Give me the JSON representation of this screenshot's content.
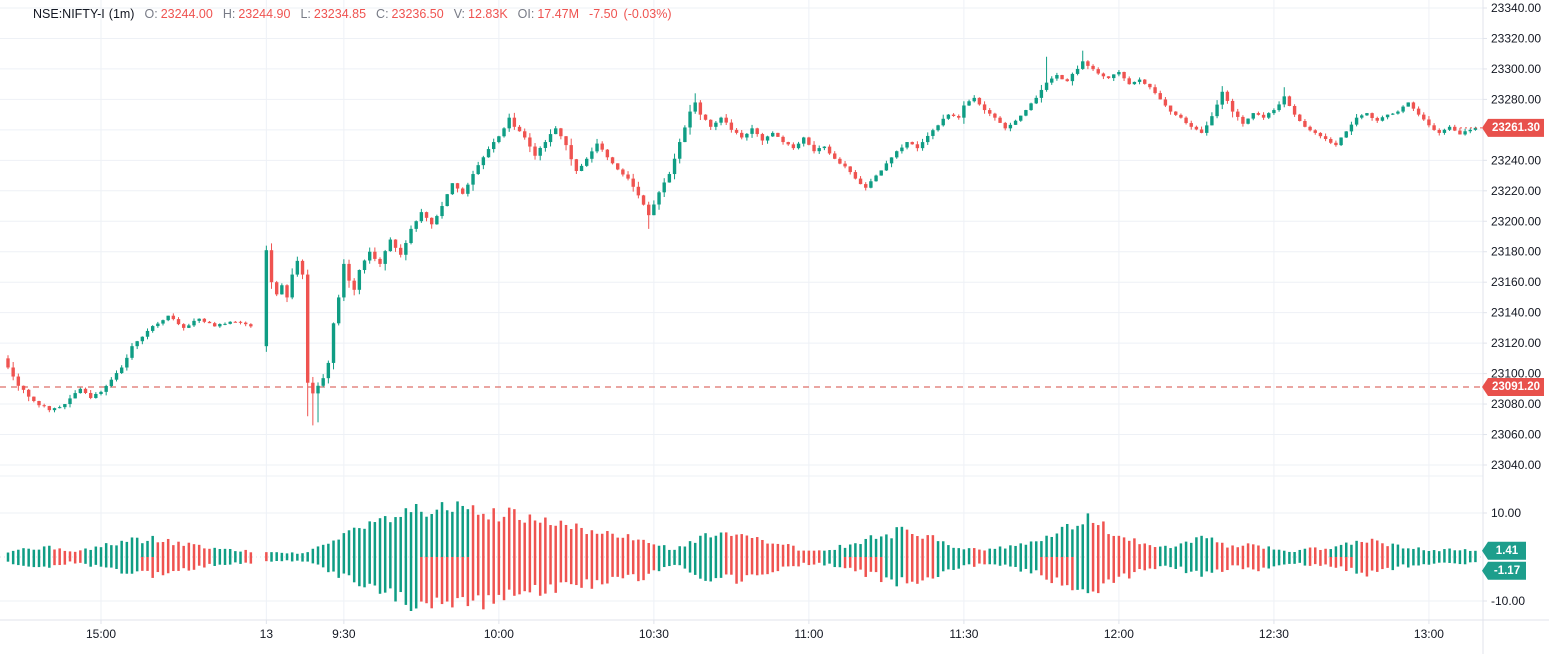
{
  "header": {
    "symbol": "NSE:NIFTY-I",
    "interval": "(1m)",
    "fields": [
      {
        "label": "O:",
        "value": "23244.00"
      },
      {
        "label": "H:",
        "value": "23244.90"
      },
      {
        "label": "L:",
        "value": "23234.85"
      },
      {
        "label": "C:",
        "value": "23236.50"
      },
      {
        "label": "V:",
        "value": "12.83K"
      },
      {
        "label": "OI:",
        "value": "17.47M"
      }
    ],
    "change": "-7.50",
    "change_pct": "(-0.03%)"
  },
  "colors": {
    "up": "#0f9d84",
    "down": "#ef5350",
    "badge_red": "#e8514c",
    "badge_teal": "#1d9e8c",
    "grid": "#eef1f6",
    "axis_border": "#e0e3eb",
    "axis_text": "#131722",
    "muted_text": "#787b86",
    "prev_close_line": "#d64b43",
    "zero_line": "#d8dbe0",
    "background": "#ffffff"
  },
  "chart_data": {
    "type": "candlestick",
    "symbol": "NSE:NIFTY-I",
    "interval": "1m",
    "legend_position": "top-left",
    "grid": true,
    "bars_total": 285,
    "gap_indices": [
      48,
      49
    ],
    "x_labels": [
      {
        "i": 18,
        "label": "15:00"
      },
      {
        "i": 50,
        "label": "13"
      },
      {
        "i": 65,
        "label": "9:30"
      },
      {
        "i": 95,
        "label": "10:00"
      },
      {
        "i": 125,
        "label": "10:30"
      },
      {
        "i": 155,
        "label": "11:00"
      },
      {
        "i": 185,
        "label": "11:30"
      },
      {
        "i": 215,
        "label": "12:00"
      },
      {
        "i": 245,
        "label": "12:30"
      },
      {
        "i": 275,
        "label": "13:00"
      }
    ],
    "price_panel": {
      "ylim": [
        23034,
        23345
      ],
      "ticks": [
        23340,
        23320,
        23300,
        23280,
        23260,
        23240,
        23220,
        23200,
        23180,
        23160,
        23140,
        23120,
        23100,
        23080,
        23060,
        23040
      ],
      "last_price": 23261.3,
      "last_price_label": "23261.30",
      "prev_close": 23091.2,
      "prev_close_label": "23091.20",
      "close_anchors": [
        [
          0,
          23104
        ],
        [
          2,
          23092
        ],
        [
          5,
          23082
        ],
        [
          8,
          23076
        ],
        [
          11,
          23080
        ],
        [
          14,
          23090
        ],
        [
          16,
          23084
        ],
        [
          18,
          23088
        ],
        [
          20,
          23096
        ],
        [
          22,
          23104
        ],
        [
          24,
          23118
        ],
        [
          27,
          23128
        ],
        [
          31,
          23138
        ],
        [
          34,
          23130
        ],
        [
          37,
          23136
        ],
        [
          40,
          23131
        ],
        [
          44,
          23134
        ],
        [
          47,
          23131
        ],
        [
          50,
          23181
        ],
        [
          51,
          23160
        ],
        [
          52,
          23152
        ],
        [
          53,
          23158
        ],
        [
          54,
          23150
        ],
        [
          55,
          23165
        ],
        [
          56,
          23174
        ],
        [
          57,
          23165
        ],
        [
          58,
          23094
        ],
        [
          59,
          23087
        ],
        [
          60,
          23092
        ],
        [
          61,
          23097
        ],
        [
          62,
          23107
        ],
        [
          63,
          23133
        ],
        [
          64,
          23150
        ],
        [
          65,
          23172
        ],
        [
          66,
          23161
        ],
        [
          67,
          23155
        ],
        [
          68,
          23168
        ],
        [
          70,
          23180
        ],
        [
          72,
          23172
        ],
        [
          74,
          23188
        ],
        [
          76,
          23178
        ],
        [
          78,
          23195
        ],
        [
          80,
          23206
        ],
        [
          82,
          23198
        ],
        [
          84,
          23210
        ],
        [
          86,
          23225
        ],
        [
          88,
          23218
        ],
        [
          90,
          23231
        ],
        [
          92,
          23242
        ],
        [
          94,
          23252
        ],
        [
          96,
          23261
        ],
        [
          97,
          23268
        ],
        [
          98,
          23262
        ],
        [
          100,
          23255
        ],
        [
          102,
          23243
        ],
        [
          104,
          23252
        ],
        [
          106,
          23261
        ],
        [
          108,
          23250
        ],
        [
          110,
          23233
        ],
        [
          112,
          23241
        ],
        [
          114,
          23251
        ],
        [
          116,
          23242
        ],
        [
          118,
          23234
        ],
        [
          120,
          23228
        ],
        [
          122,
          23217
        ],
        [
          124,
          23204
        ],
        [
          125,
          23211
        ],
        [
          126,
          23219
        ],
        [
          128,
          23231
        ],
        [
          130,
          23252
        ],
        [
          132,
          23272
        ],
        [
          133,
          23278
        ],
        [
          134,
          23270
        ],
        [
          136,
          23262
        ],
        [
          138,
          23268
        ],
        [
          140,
          23260
        ],
        [
          142,
          23255
        ],
        [
          144,
          23261
        ],
        [
          146,
          23253
        ],
        [
          148,
          23258
        ],
        [
          150,
          23252
        ],
        [
          152,
          23248
        ],
        [
          154,
          23255
        ],
        [
          156,
          23246
        ],
        [
          158,
          23249
        ],
        [
          160,
          23241
        ],
        [
          162,
          23236
        ],
        [
          164,
          23228
        ],
        [
          166,
          23222
        ],
        [
          168,
          23230
        ],
        [
          170,
          23238
        ],
        [
          172,
          23246
        ],
        [
          174,
          23252
        ],
        [
          176,
          23248
        ],
        [
          178,
          23256
        ],
        [
          180,
          23263
        ],
        [
          182,
          23270
        ],
        [
          184,
          23268
        ],
        [
          185,
          23276
        ],
        [
          187,
          23281
        ],
        [
          189,
          23273
        ],
        [
          191,
          23268
        ],
        [
          193,
          23261
        ],
        [
          195,
          23266
        ],
        [
          197,
          23273
        ],
        [
          199,
          23281
        ],
        [
          201,
          23291
        ],
        [
          203,
          23296
        ],
        [
          205,
          23292
        ],
        [
          207,
          23300
        ],
        [
          208,
          23305
        ],
        [
          209,
          23302
        ],
        [
          211,
          23297
        ],
        [
          213,
          23294
        ],
        [
          215,
          23298
        ],
        [
          217,
          23290
        ],
        [
          219,
          23293
        ],
        [
          221,
          23288
        ],
        [
          223,
          23280
        ],
        [
          225,
          23272
        ],
        [
          227,
          23268
        ],
        [
          229,
          23262
        ],
        [
          231,
          23258
        ],
        [
          233,
          23269
        ],
        [
          235,
          23285
        ],
        [
          237,
          23272
        ],
        [
          239,
          23264
        ],
        [
          241,
          23271
        ],
        [
          243,
          23268
        ],
        [
          245,
          23273
        ],
        [
          247,
          23282
        ],
        [
          249,
          23270
        ],
        [
          251,
          23262
        ],
        [
          253,
          23258
        ],
        [
          255,
          23254
        ],
        [
          257,
          23250
        ],
        [
          259,
          23259
        ],
        [
          261,
          23268
        ],
        [
          263,
          23271
        ],
        [
          265,
          23266
        ],
        [
          267,
          23270
        ],
        [
          269,
          23272
        ],
        [
          271,
          23278
        ],
        [
          273,
          23270
        ],
        [
          275,
          23263
        ],
        [
          277,
          23258
        ],
        [
          279,
          23262
        ],
        [
          281,
          23257
        ],
        [
          283,
          23260
        ],
        [
          284,
          23261.3
        ]
      ],
      "open_overrides": [
        {
          "i": 50,
          "open": 23118
        }
      ],
      "wick_overrides": [
        {
          "i": 0,
          "high": 23112
        },
        {
          "i": 50,
          "high": 23184
        },
        {
          "i": 58,
          "low": 23072
        },
        {
          "i": 59,
          "low": 23066
        },
        {
          "i": 60,
          "low": 23068
        },
        {
          "i": 124,
          "low": 23195
        },
        {
          "i": 133,
          "high": 23284
        },
        {
          "i": 201,
          "high": 23308
        },
        {
          "i": 208,
          "high": 23312
        },
        {
          "i": 247,
          "high": 23288
        }
      ]
    },
    "indicator_panel": {
      "ylim": [
        -13.9,
        18.4
      ],
      "ticks": [
        10,
        -10
      ],
      "tick_labels": [
        "10.00",
        "-10.00"
      ],
      "zero_line": true,
      "last_values": [
        1.41,
        -1.17
      ],
      "last_value_labels": [
        "1.41",
        "-1.17"
      ],
      "amp_anchors": [
        [
          0,
          1.3
        ],
        [
          4,
          1.8
        ],
        [
          8,
          2.2
        ],
        [
          12,
          1.2
        ],
        [
          15,
          1.7
        ],
        [
          18,
          2.4
        ],
        [
          21,
          3.2
        ],
        [
          24,
          3.8
        ],
        [
          28,
          4.0
        ],
        [
          32,
          3.3
        ],
        [
          36,
          2.5
        ],
        [
          40,
          1.8
        ],
        [
          44,
          1.5
        ],
        [
          48,
          1.2
        ],
        [
          52,
          1.0
        ],
        [
          56,
          0.9
        ],
        [
          58,
          1.3
        ],
        [
          60,
          2.0
        ],
        [
          62,
          3.0
        ],
        [
          64,
          4.2
        ],
        [
          66,
          5.0
        ],
        [
          68,
          6.0
        ],
        [
          70,
          7.0
        ],
        [
          72,
          8.0
        ],
        [
          75,
          9.3
        ],
        [
          78,
          10.0
        ],
        [
          81,
          10.4
        ],
        [
          84,
          10.5
        ],
        [
          87,
          10.3
        ],
        [
          90,
          10.1
        ],
        [
          93,
          9.7
        ],
        [
          96,
          9.3
        ],
        [
          99,
          8.8
        ],
        [
          102,
          8.0
        ],
        [
          105,
          7.4
        ],
        [
          108,
          6.8
        ],
        [
          111,
          6.3
        ],
        [
          114,
          5.8
        ],
        [
          117,
          5.4
        ],
        [
          120,
          5.0
        ],
        [
          123,
          4.5
        ],
        [
          125,
          3.6
        ],
        [
          127,
          2.2
        ],
        [
          129,
          1.6
        ],
        [
          131,
          2.4
        ],
        [
          133,
          3.8
        ],
        [
          135,
          4.8
        ],
        [
          137,
          4.5
        ],
        [
          139,
          4.8
        ],
        [
          141,
          5.0
        ],
        [
          143,
          4.5
        ],
        [
          145,
          4.0
        ],
        [
          147,
          3.4
        ],
        [
          149,
          3.0
        ],
        [
          151,
          2.4
        ],
        [
          153,
          1.8
        ],
        [
          155,
          1.5
        ],
        [
          157,
          1.5
        ],
        [
          159,
          1.8
        ],
        [
          161,
          2.3
        ],
        [
          163,
          2.8
        ],
        [
          165,
          3.5
        ],
        [
          167,
          4.1
        ],
        [
          169,
          4.7
        ],
        [
          171,
          5.3
        ],
        [
          173,
          5.8
        ],
        [
          175,
          6.0
        ],
        [
          177,
          5.2
        ],
        [
          179,
          4.4
        ],
        [
          181,
          3.2
        ],
        [
          183,
          2.4
        ],
        [
          185,
          2.1
        ],
        [
          187,
          2.0
        ],
        [
          189,
          1.7
        ],
        [
          191,
          1.9
        ],
        [
          193,
          2.2
        ],
        [
          195,
          2.5
        ],
        [
          197,
          2.9
        ],
        [
          199,
          3.6
        ],
        [
          201,
          4.6
        ],
        [
          203,
          5.8
        ],
        [
          205,
          6.8
        ],
        [
          207,
          7.7
        ],
        [
          209,
          8.2
        ],
        [
          211,
          7.4
        ],
        [
          213,
          6.3
        ],
        [
          215,
          5.3
        ],
        [
          217,
          4.3
        ],
        [
          219,
          3.3
        ],
        [
          221,
          2.7
        ],
        [
          223,
          2.3
        ],
        [
          225,
          2.1
        ],
        [
          227,
          2.8
        ],
        [
          229,
          3.5
        ],
        [
          231,
          4.0
        ],
        [
          233,
          3.6
        ],
        [
          235,
          2.9
        ],
        [
          237,
          2.3
        ],
        [
          239,
          2.5
        ],
        [
          241,
          2.9
        ],
        [
          243,
          2.4
        ],
        [
          245,
          1.9
        ],
        [
          247,
          1.5
        ],
        [
          249,
          1.4
        ],
        [
          251,
          1.6
        ],
        [
          253,
          1.9
        ],
        [
          255,
          1.7
        ],
        [
          257,
          2.3
        ],
        [
          259,
          3.0
        ],
        [
          261,
          3.3
        ],
        [
          263,
          3.7
        ],
        [
          265,
          3.2
        ],
        [
          267,
          2.7
        ],
        [
          269,
          2.3
        ],
        [
          271,
          2.0
        ],
        [
          273,
          1.8
        ],
        [
          275,
          1.6
        ],
        [
          277,
          1.5
        ],
        [
          279,
          1.7
        ],
        [
          281,
          1.5
        ],
        [
          283,
          1.45
        ],
        [
          284,
          1.41
        ]
      ],
      "color_segments": [
        [
          0,
          9,
          "up"
        ],
        [
          9,
          15,
          "down"
        ],
        [
          15,
          29,
          "up"
        ],
        [
          29,
          40,
          "down"
        ],
        [
          40,
          46,
          "up"
        ],
        [
          46,
          51,
          "down"
        ],
        [
          51,
          90,
          "up"
        ],
        [
          90,
          126,
          "down"
        ],
        [
          126,
          139,
          "up"
        ],
        [
          139,
          158,
          "down"
        ],
        [
          158,
          174,
          "up"
        ],
        [
          174,
          180,
          "down"
        ],
        [
          180,
          187,
          "up"
        ],
        [
          187,
          190,
          "down"
        ],
        [
          190,
          210,
          "up"
        ],
        [
          210,
          223,
          "down"
        ],
        [
          223,
          234,
          "up"
        ],
        [
          234,
          244,
          "down"
        ],
        [
          244,
          252,
          "up"
        ],
        [
          252,
          256,
          "down"
        ],
        [
          256,
          262,
          "up"
        ],
        [
          262,
          268,
          "down"
        ],
        [
          268,
          285,
          "up"
        ]
      ],
      "neg_color_segments": [
        [
          26,
          40,
          "down"
        ],
        [
          80,
          90,
          "down"
        ],
        [
          162,
          170,
          "down"
        ],
        [
          200,
          207,
          "down"
        ],
        [
          256,
          261,
          "down"
        ]
      ]
    }
  }
}
